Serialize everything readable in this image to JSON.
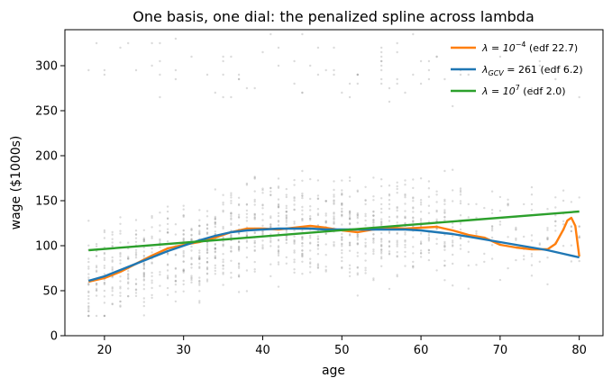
{
  "chart_data": {
    "type": "line",
    "title": "One basis, one dial: the penalized spline across lambda",
    "xlabel": "age",
    "ylabel": "wage ($1000s)",
    "xlim": [
      15,
      83
    ],
    "ylim": [
      0,
      340
    ],
    "xticks": [
      20,
      30,
      40,
      50,
      60,
      70,
      80
    ],
    "yticks": [
      0,
      50,
      100,
      150,
      200,
      250,
      300
    ],
    "grid": false,
    "legend_position": "top-right",
    "scatter": {
      "name": "wage data",
      "color": "#999999",
      "age_range": [
        18,
        80
      ],
      "approx_count": 3000,
      "description_bands": [
        {
          "min": 20,
          "max": 200,
          "weight": 0.93
        },
        {
          "min": 255,
          "max": 320,
          "weight": 0.07
        }
      ]
    },
    "series": [
      {
        "legend_math": "λ = 10",
        "legend_sup": "−4",
        "legend_suffix": " (edf 22.7)",
        "color": "#ff7f0e",
        "x": [
          18,
          20,
          22,
          24,
          26,
          28,
          30,
          32,
          34,
          36,
          38,
          40,
          42,
          44,
          46,
          48,
          50,
          52,
          54,
          56,
          58,
          60,
          62,
          64,
          66,
          68,
          70,
          72,
          74,
          76,
          77,
          78,
          78.5,
          79,
          79.5,
          80
        ],
        "y": [
          60,
          64,
          71,
          80,
          89,
          97,
          101,
          104,
          109,
          115,
          119,
          119,
          118,
          120,
          122,
          120,
          117,
          115,
          118,
          120,
          119,
          120,
          121,
          117,
          112,
          109,
          101,
          98,
          96,
          96,
          102,
          118,
          128,
          131,
          122,
          88
        ]
      },
      {
        "legend_math": "λ",
        "legend_math_sub": "GCV",
        "legend_mid": " = 261",
        "legend_suffix": " (edf 6.2)",
        "color": "#1f77b4",
        "x": [
          18,
          20,
          22,
          24,
          26,
          28,
          30,
          32,
          34,
          36,
          38,
          40,
          42,
          44,
          46,
          48,
          50,
          52,
          54,
          56,
          58,
          60,
          62,
          64,
          66,
          68,
          70,
          72,
          74,
          76,
          78,
          80
        ],
        "y": [
          61,
          66,
          73,
          80,
          87,
          94,
          100,
          106,
          111,
          115,
          117,
          118,
          119,
          119,
          119,
          118,
          118,
          118,
          118,
          118,
          118,
          117,
          115,
          113,
          110,
          107,
          104,
          101,
          98,
          95,
          91,
          87
        ]
      },
      {
        "legend_math": "λ = 10",
        "legend_sup": "7",
        "legend_suffix": " (edf 2.0)",
        "color": "#2ca02c",
        "x": [
          18,
          80
        ],
        "y": [
          95,
          138
        ]
      }
    ]
  }
}
